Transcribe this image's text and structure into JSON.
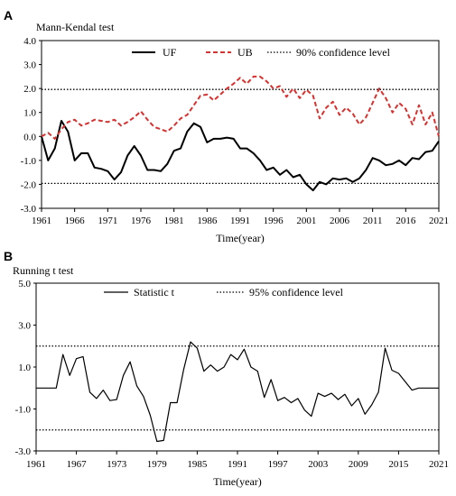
{
  "chart_data": [
    {
      "type": "line",
      "panel": "A",
      "title": "Mann-Kendal test",
      "xlabel": "Time(year)",
      "ylabel": "",
      "xlim": [
        1961,
        2021
      ],
      "ylim": [
        -3.0,
        4.0
      ],
      "xticks": [
        "1961",
        "1966",
        "1971",
        "1976",
        "1981",
        "1986",
        "1991",
        "1996",
        "2001",
        "2006",
        "2011",
        "2016",
        "2021"
      ],
      "yticks": [
        "-3.0",
        "-2.0",
        "-1.0",
        "0.0",
        "1.0",
        "2.0",
        "3.0",
        "4.0"
      ],
      "legend_position": "top",
      "confidence_level": {
        "name": "90% confidence level",
        "values": [
          1.96,
          -1.96
        ],
        "color": "#000000"
      },
      "x": [
        1961,
        1962,
        1963,
        1964,
        1965,
        1966,
        1967,
        1968,
        1969,
        1970,
        1971,
        1972,
        1973,
        1974,
        1975,
        1976,
        1977,
        1978,
        1979,
        1980,
        1981,
        1982,
        1983,
        1984,
        1985,
        1986,
        1987,
        1988,
        1989,
        1990,
        1991,
        1992,
        1993,
        1994,
        1995,
        1996,
        1997,
        1998,
        1999,
        2000,
        2001,
        2002,
        2003,
        2004,
        2005,
        2006,
        2007,
        2008,
        2009,
        2010,
        2011,
        2012,
        2013,
        2014,
        2015,
        2016,
        2017,
        2018,
        2019,
        2020,
        2021
      ],
      "series": [
        {
          "name": "UF",
          "color": "#000000",
          "style": "solid",
          "values": [
            0.0,
            -1.0,
            -0.5,
            0.65,
            0.2,
            -1.0,
            -0.7,
            -0.7,
            -1.3,
            -1.35,
            -1.45,
            -1.8,
            -1.5,
            -0.8,
            -0.4,
            -0.8,
            -1.4,
            -1.4,
            -1.45,
            -1.15,
            -0.6,
            -0.5,
            0.2,
            0.55,
            0.4,
            -0.25,
            -0.1,
            -0.1,
            -0.05,
            -0.1,
            -0.5,
            -0.5,
            -0.7,
            -1.0,
            -1.4,
            -1.3,
            -1.6,
            -1.4,
            -1.7,
            -1.6,
            -2.0,
            -2.25,
            -1.9,
            -2.0,
            -1.75,
            -1.8,
            -1.75,
            -1.9,
            -1.75,
            -1.4,
            -0.9,
            -1.0,
            -1.2,
            -1.15,
            -1.0,
            -1.2,
            -0.9,
            -0.95,
            -0.65,
            -0.6,
            -0.2
          ]
        },
        {
          "name": "UB",
          "color": "#d6322f",
          "style": "dashed",
          "values": [
            0.0,
            0.15,
            -0.1,
            0.3,
            0.6,
            0.7,
            0.45,
            0.55,
            0.7,
            0.65,
            0.6,
            0.7,
            0.45,
            0.6,
            0.8,
            1.05,
            0.7,
            0.4,
            0.3,
            0.2,
            0.45,
            0.75,
            0.9,
            1.3,
            1.7,
            1.75,
            1.5,
            1.75,
            2.0,
            2.2,
            2.45,
            2.2,
            2.5,
            2.5,
            2.3,
            2.0,
            2.1,
            1.65,
            2.0,
            1.6,
            1.95,
            1.7,
            0.75,
            1.2,
            1.45,
            0.9,
            1.2,
            0.95,
            0.5,
            0.8,
            1.4,
            2.0,
            1.6,
            1.0,
            1.4,
            1.15,
            0.5,
            1.3,
            0.5,
            1.0,
            0.0
          ]
        }
      ]
    },
    {
      "type": "line",
      "panel": "B",
      "title": "Running t test",
      "xlabel": "Time(year)",
      "ylabel": "",
      "xlim": [
        1961,
        2021
      ],
      "ylim": [
        -3.0,
        5.0
      ],
      "xticks": [
        "1961",
        "1967",
        "1973",
        "1979",
        "1985",
        "1991",
        "1997",
        "2003",
        "2009",
        "2015",
        "2021"
      ],
      "yticks": [
        "-3.0",
        "-1.0",
        "1.0",
        "3.0",
        "5.0"
      ],
      "legend_position": "top",
      "confidence_level": {
        "name": "95% confidence level",
        "values": [
          2.0,
          -2.0
        ],
        "color": "#000000"
      },
      "x": [
        1961,
        1962,
        1963,
        1964,
        1965,
        1966,
        1967,
        1968,
        1969,
        1970,
        1971,
        1972,
        1973,
        1974,
        1975,
        1976,
        1977,
        1978,
        1979,
        1980,
        1981,
        1982,
        1983,
        1984,
        1985,
        1986,
        1987,
        1988,
        1989,
        1990,
        1991,
        1992,
        1993,
        1994,
        1995,
        1996,
        1997,
        1998,
        1999,
        2000,
        2001,
        2002,
        2003,
        2004,
        2005,
        2006,
        2007,
        2008,
        2009,
        2010,
        2011,
        2012,
        2013,
        2014,
        2015,
        2016,
        2017,
        2018,
        2019,
        2020,
        2021
      ],
      "series": [
        {
          "name": "Statistic t",
          "color": "#000000",
          "style": "solid",
          "values": [
            0.0,
            0.0,
            0.0,
            0.0,
            1.6,
            0.6,
            1.4,
            1.5,
            -0.2,
            -0.5,
            -0.1,
            -0.6,
            -0.55,
            0.6,
            1.25,
            0.1,
            -0.4,
            -1.3,
            -2.55,
            -2.5,
            -0.7,
            -0.7,
            0.9,
            2.2,
            1.9,
            0.8,
            1.1,
            0.8,
            1.0,
            1.6,
            1.35,
            1.85,
            1.0,
            0.8,
            -0.45,
            0.4,
            -0.6,
            -0.45,
            -0.7,
            -0.5,
            -1.05,
            -1.35,
            -0.25,
            -0.4,
            -0.25,
            -0.55,
            -0.3,
            -0.85,
            -0.5,
            -1.25,
            -0.8,
            -0.2,
            1.9,
            0.85,
            0.7,
            0.3,
            -0.1,
            0.0,
            0.0,
            0.0,
            0.0
          ]
        }
      ]
    }
  ]
}
